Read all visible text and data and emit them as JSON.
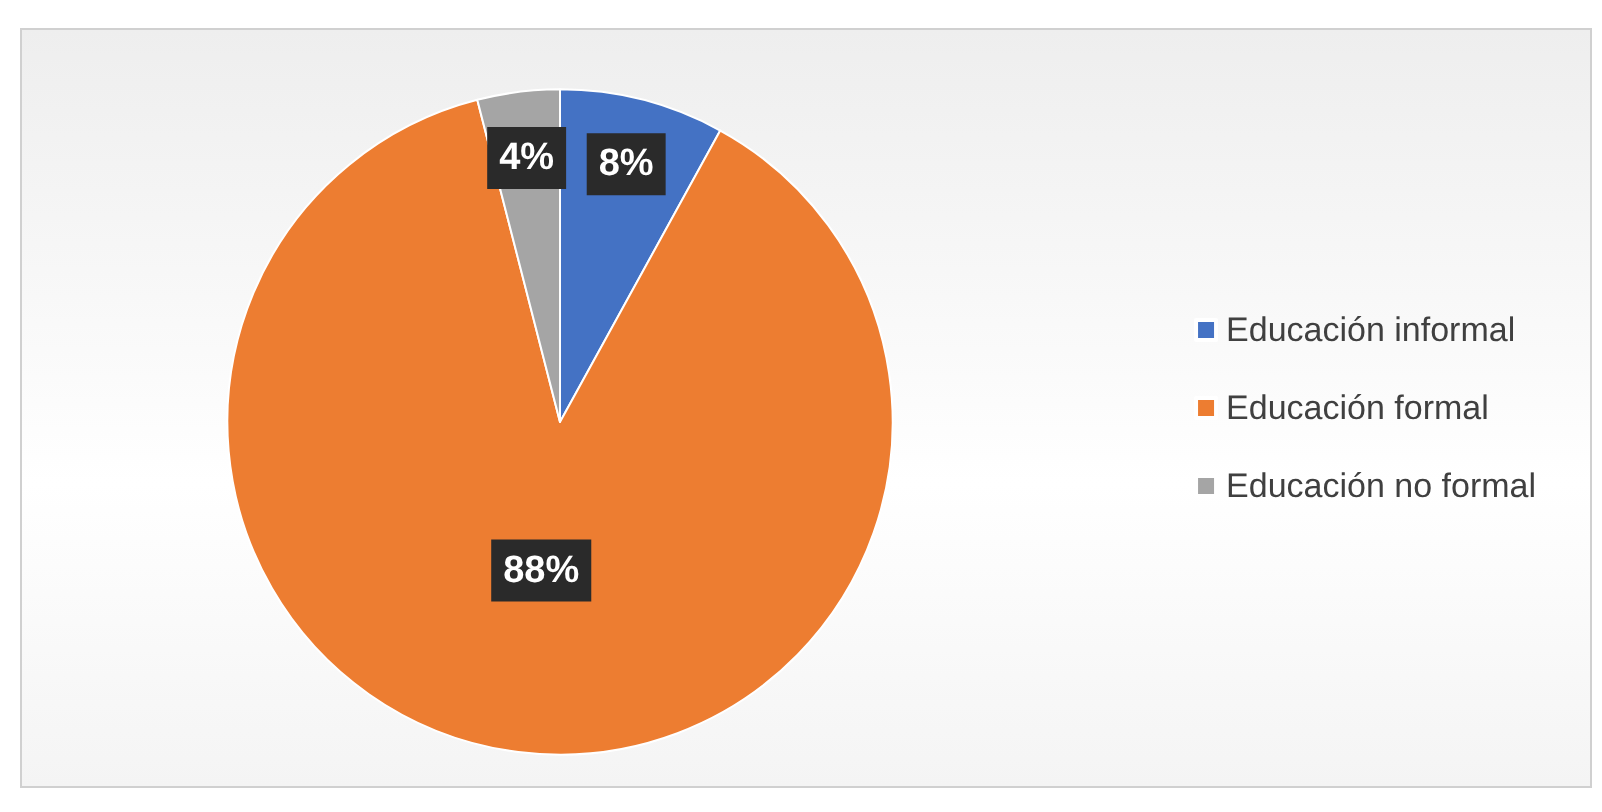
{
  "chart_data": {
    "type": "pie",
    "categories": [
      "Educación informal",
      "Educación formal",
      "Educación no formal"
    ],
    "values": [
      8,
      88,
      4
    ],
    "colors": [
      "#4472c4",
      "#ed7d31",
      "#a5a5a5"
    ],
    "value_labels": [
      "8%",
      "88%",
      "4%"
    ],
    "legend": "right"
  }
}
